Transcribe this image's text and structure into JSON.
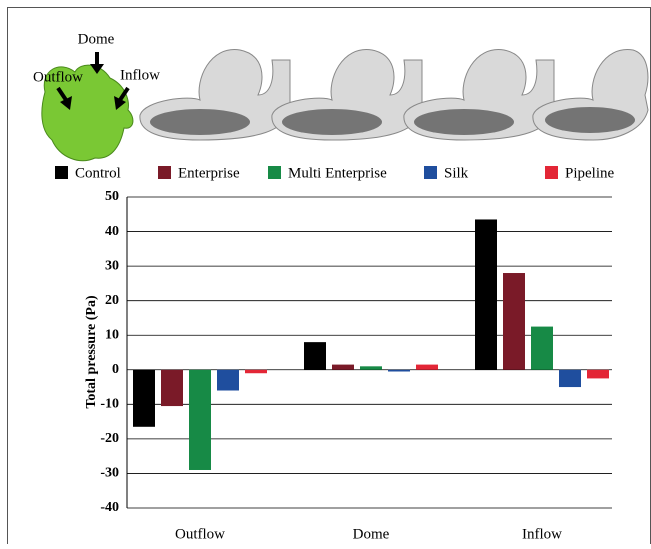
{
  "chart_data": {
    "type": "bar",
    "annotations": [
      "Dome",
      "Outflow",
      "Inflow"
    ],
    "y_label": "Total pressure (Pa)",
    "categories": [
      "Outflow",
      "Dome",
      "Inflow"
    ],
    "series": [
      {
        "name": "Control",
        "color": "#000000",
        "values": [
          -16.5,
          8,
          43.5
        ]
      },
      {
        "name": "Enterprise",
        "color": "#7a1a28",
        "values": [
          -10.5,
          1.5,
          28
        ]
      },
      {
        "name": "Multi Enterprise",
        "color": "#178a46",
        "values": [
          -29,
          1,
          12.5
        ]
      },
      {
        "name": "Silk",
        "color": "#1f4e9e",
        "values": [
          -6,
          -0.5,
          -5
        ]
      },
      {
        "name": "Pipeline",
        "color": "#e32636",
        "values": [
          -1,
          1.5,
          -2.5
        ]
      }
    ],
    "ylim": [
      -40,
      50
    ],
    "yticks": [
      -40,
      -30,
      -20,
      -10,
      0,
      10,
      20,
      30,
      40,
      50
    ],
    "grid": true
  }
}
